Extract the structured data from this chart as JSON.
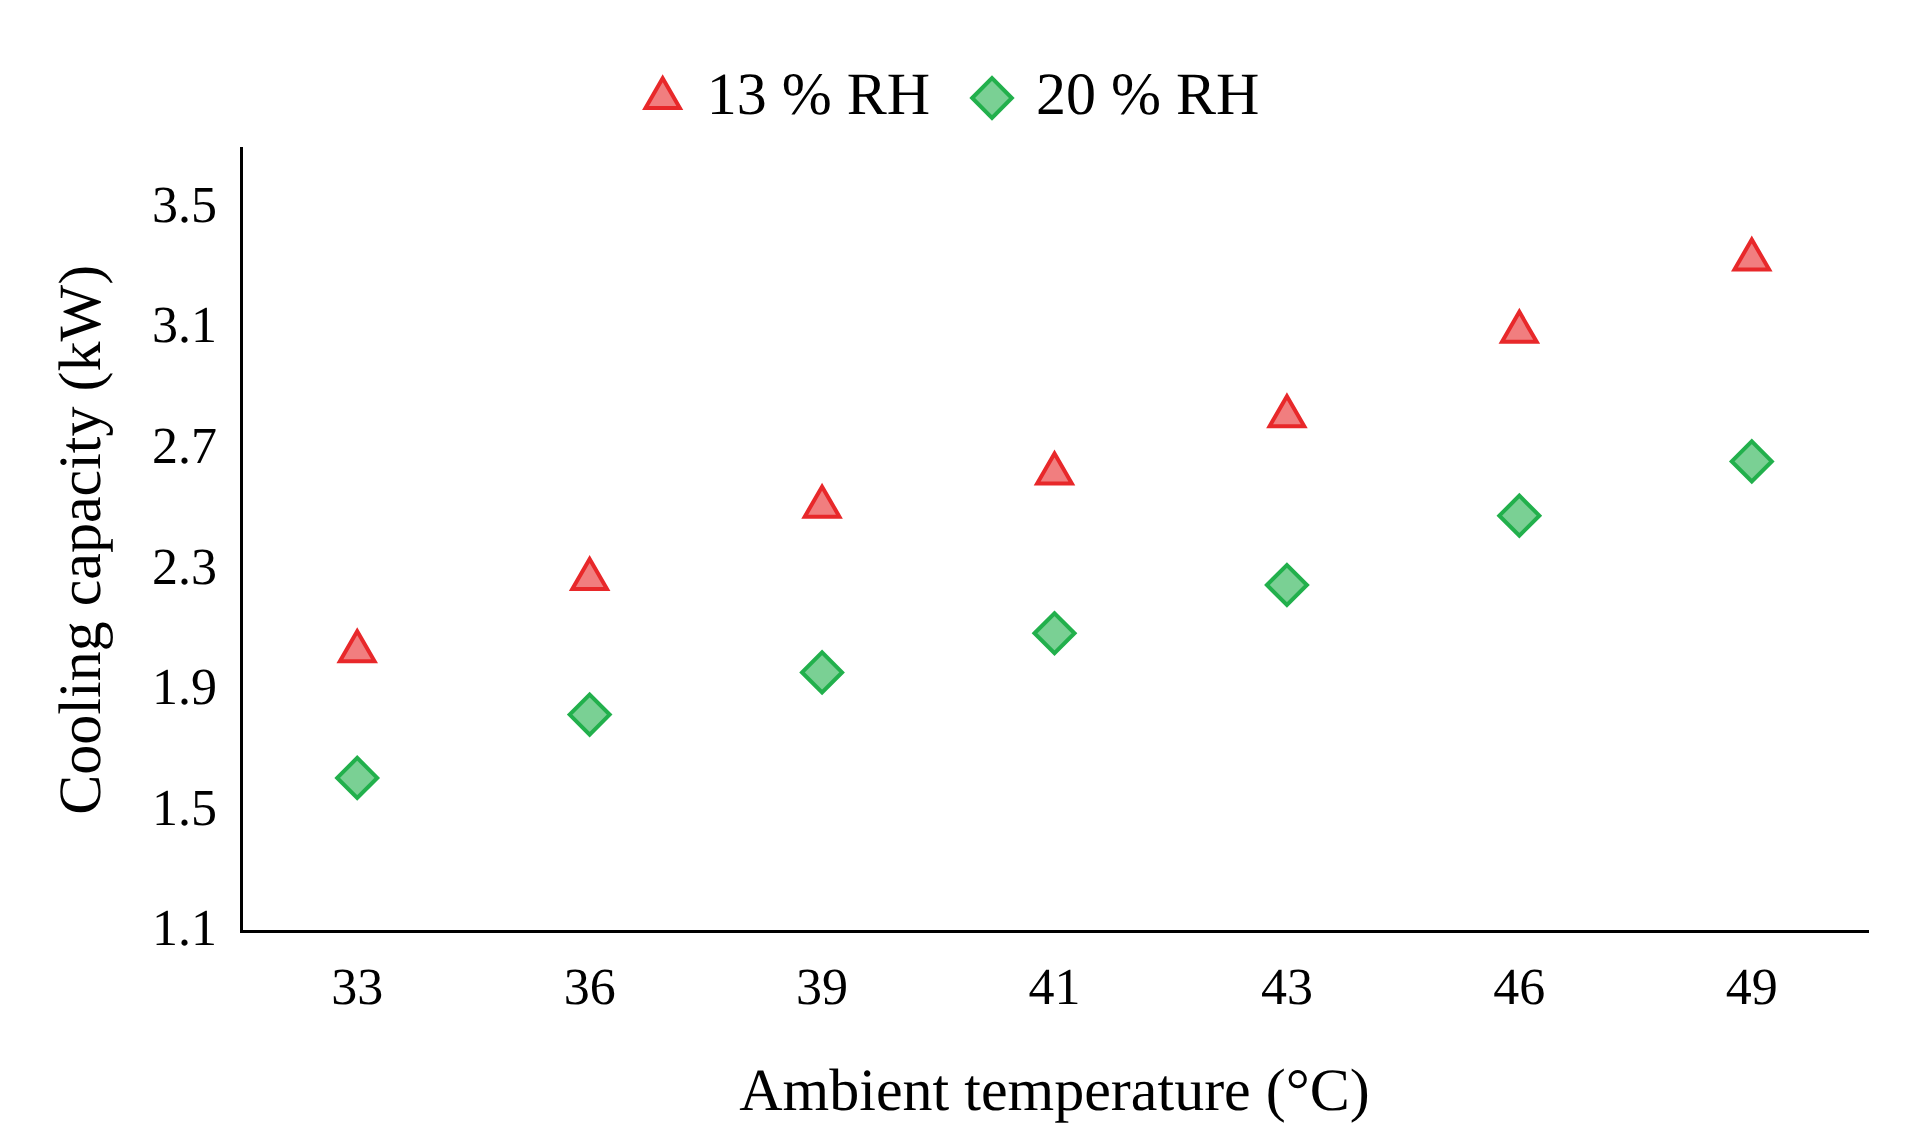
{
  "chart_data": {
    "type": "scatter",
    "xlabel": "Ambient temperature (°C)",
    "ylabel": "Cooling capacity (kW)",
    "categories": [
      "33",
      "36",
      "39",
      "41",
      "43",
      "46",
      "49"
    ],
    "series": [
      {
        "name": "13 % RH",
        "color": "#e8282a",
        "marker": "triangle",
        "values": [
          2.03,
          2.27,
          2.51,
          2.62,
          2.81,
          3.09,
          3.33
        ]
      },
      {
        "name": "20 % RH",
        "color": "#22b04c",
        "marker": "diamond",
        "values": [
          1.61,
          1.82,
          1.96,
          2.09,
          2.25,
          2.48,
          2.66
        ]
      }
    ],
    "ylim": [
      1.1,
      3.7
    ],
    "yticks": [
      1.1,
      1.5,
      1.9,
      2.3,
      2.7,
      3.1,
      3.5
    ],
    "grid": false,
    "legend": "top"
  }
}
